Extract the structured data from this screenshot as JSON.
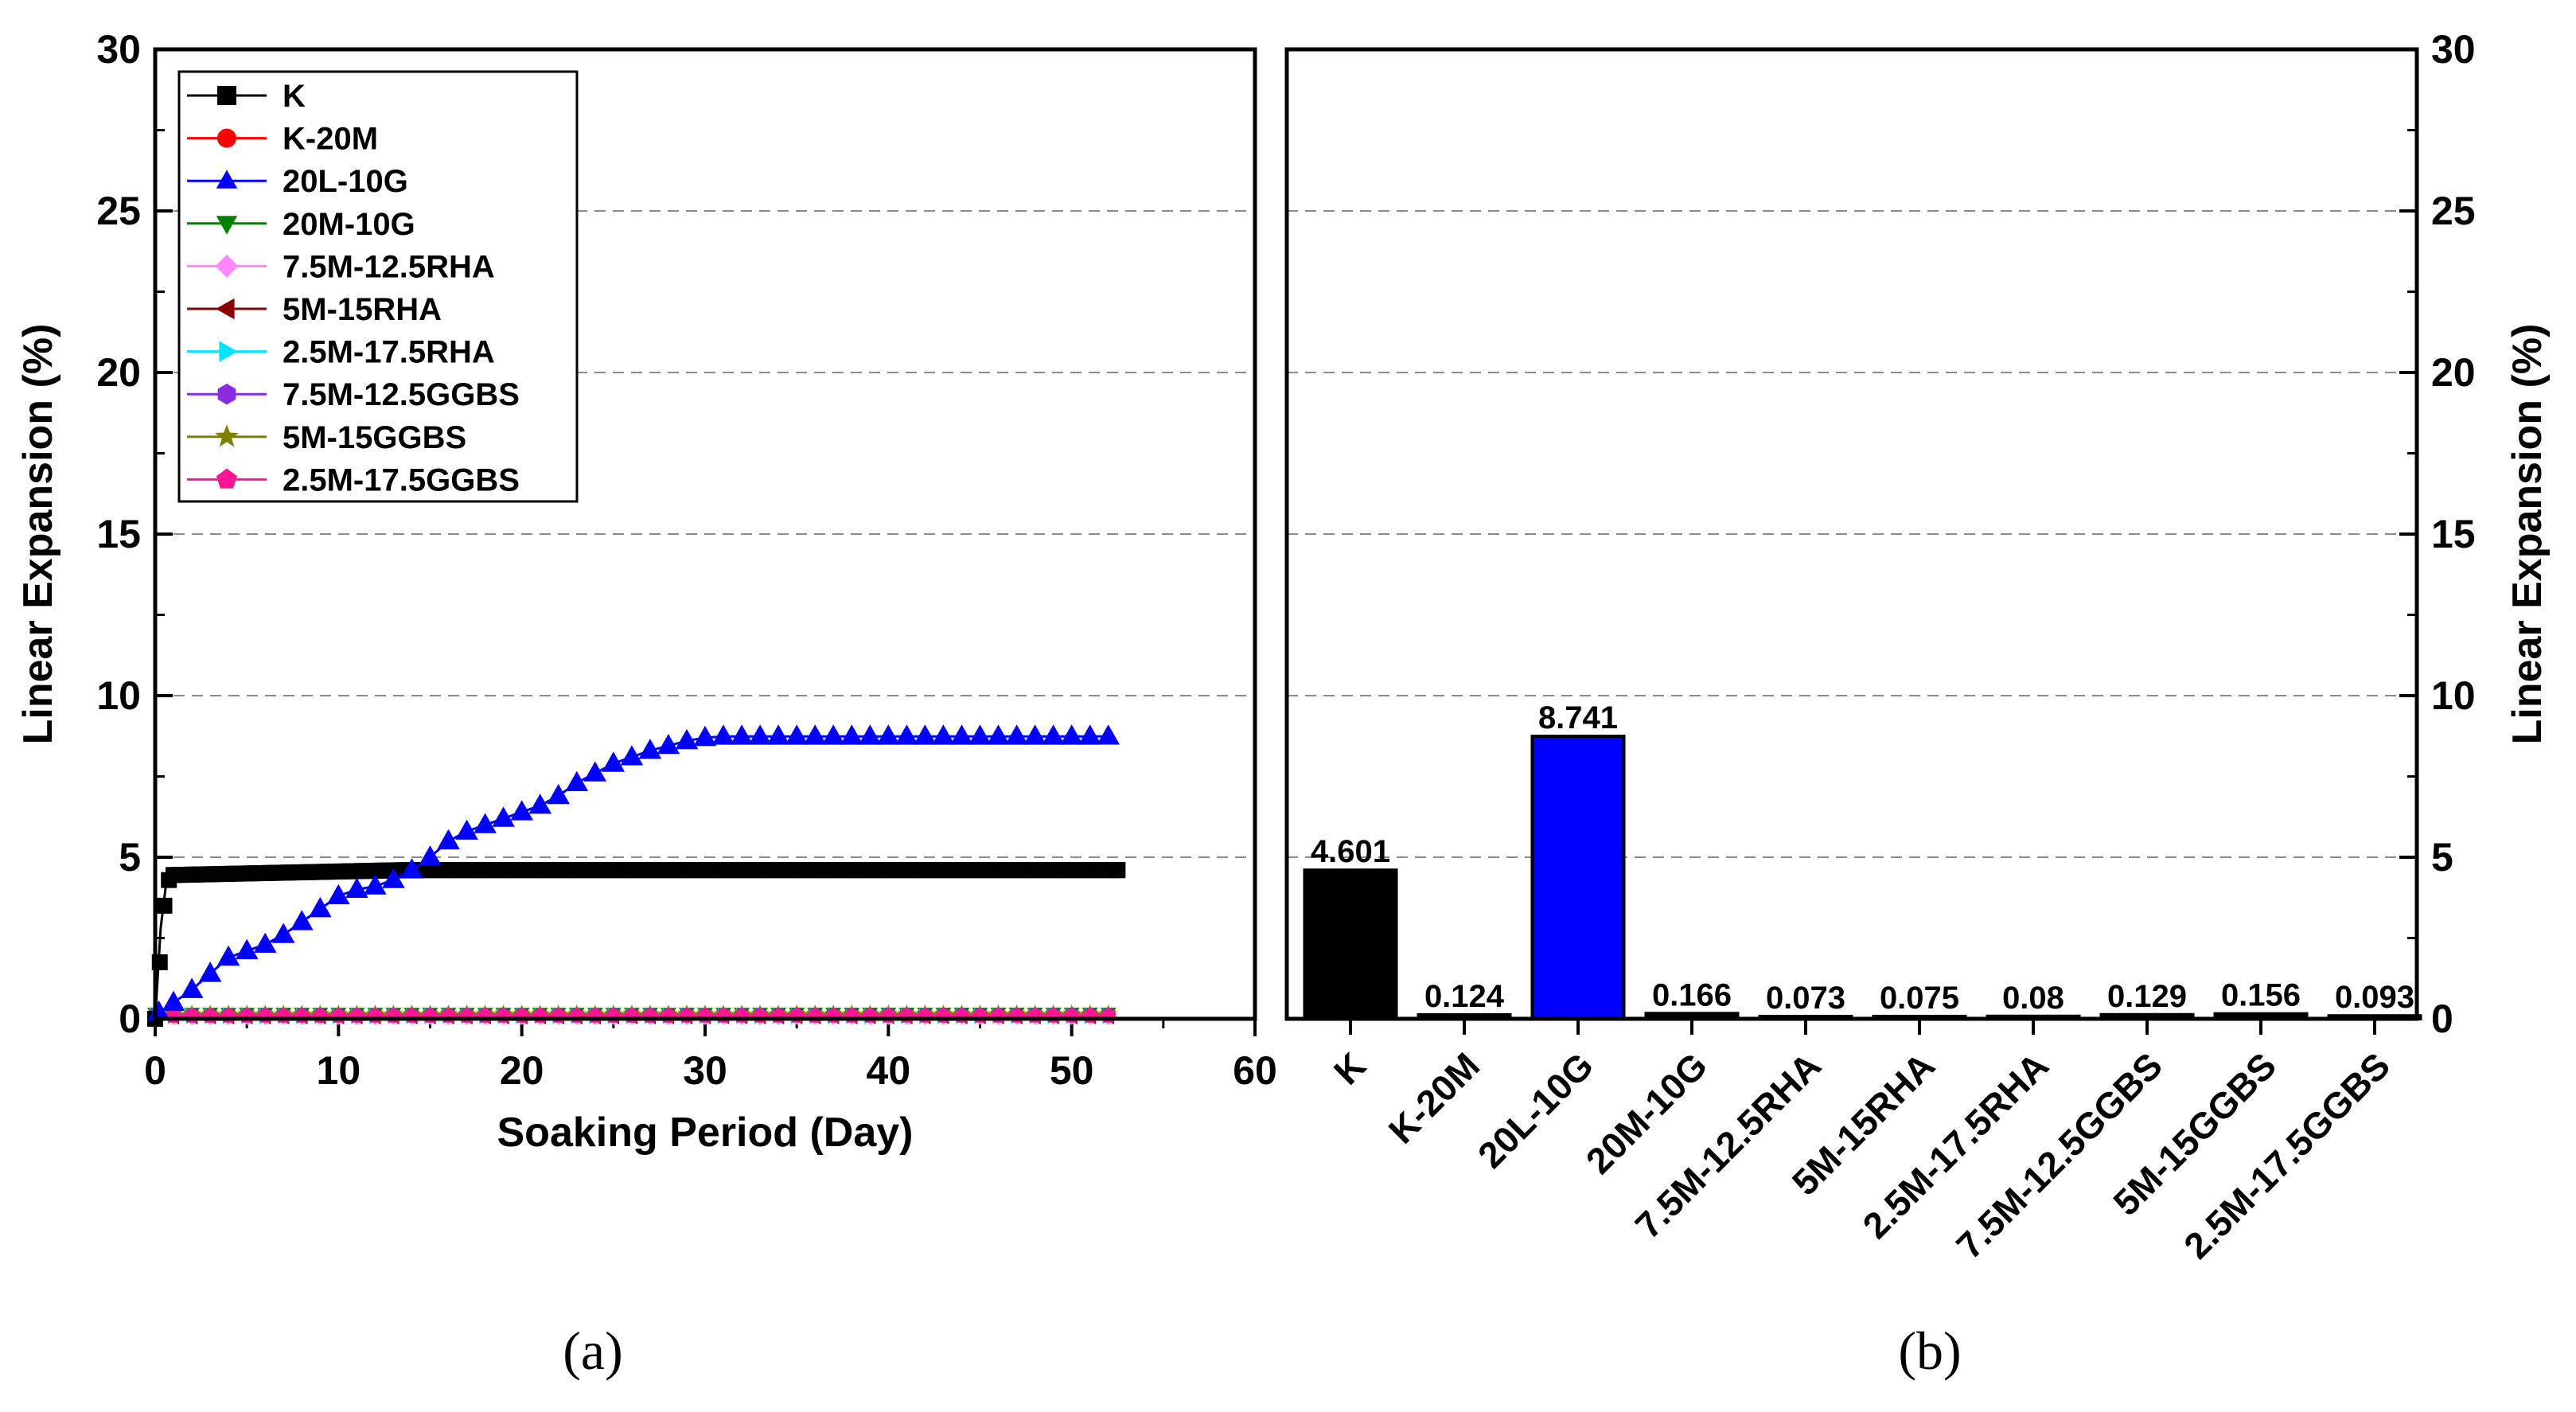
{
  "chart_data": [
    {
      "panel": "a",
      "type": "line",
      "xlabel": "Soaking Period (Day)",
      "ylabel": "Linear Expansion (%)",
      "xlim": [
        0,
        60
      ],
      "ylim": [
        0,
        30
      ],
      "xticks": [
        0,
        10,
        20,
        30,
        40,
        50,
        60
      ],
      "yticks": [
        0,
        5,
        10,
        15,
        20,
        25,
        30
      ],
      "grid": "horizontal dashed",
      "legend_position": "top-left",
      "series": [
        {
          "name": "K",
          "color": "#000000",
          "marker": "square",
          "x": [
            0,
            0.3,
            0.6,
            1,
            2,
            5,
            10,
            15,
            20,
            25,
            30,
            35,
            40,
            45,
            50,
            52.5
          ],
          "y": [
            0,
            2.8,
            4.2,
            4.45,
            4.5,
            4.55,
            4.58,
            4.6,
            4.6,
            4.6,
            4.6,
            4.6,
            4.6,
            4.6,
            4.6,
            4.601
          ]
        },
        {
          "name": "K-20M",
          "color": "#ff0000",
          "marker": "circle",
          "x": [
            0,
            52.5
          ],
          "y": [
            0.12,
            0.124
          ]
        },
        {
          "name": "20L-10G",
          "color": "#0000ff",
          "marker": "triangle-up",
          "x": [
            0.2,
            1,
            2,
            3,
            4,
            5,
            6,
            7,
            8,
            9,
            10,
            11,
            12,
            13,
            14,
            15,
            16,
            17,
            18,
            19,
            20,
            21,
            22,
            23,
            24,
            25,
            26,
            27,
            28,
            29,
            30,
            31,
            32,
            33,
            34,
            35,
            36,
            37,
            38,
            39,
            40,
            41,
            42,
            43,
            44,
            45,
            46,
            47,
            48,
            49,
            50,
            51,
            52
          ],
          "y": [
            0.2,
            0.5,
            0.9,
            1.4,
            1.9,
            2.1,
            2.3,
            2.6,
            3.0,
            3.4,
            3.8,
            4.0,
            4.1,
            4.3,
            4.6,
            5.0,
            5.5,
            5.8,
            6.0,
            6.2,
            6.4,
            6.6,
            6.9,
            7.3,
            7.6,
            7.9,
            8.1,
            8.3,
            8.45,
            8.6,
            8.7,
            8.74,
            8.74,
            8.74,
            8.74,
            8.74,
            8.74,
            8.74,
            8.74,
            8.74,
            8.74,
            8.74,
            8.74,
            8.74,
            8.74,
            8.74,
            8.74,
            8.74,
            8.74,
            8.74,
            8.74,
            8.74,
            8.741
          ]
        },
        {
          "name": "20M-10G",
          "color": "#008000",
          "marker": "triangle-down",
          "x": [
            0,
            52.5
          ],
          "y": [
            0.16,
            0.166
          ]
        },
        {
          "name": "7.5M-12.5RHA",
          "color": "#ff88ff",
          "marker": "diamond",
          "x": [
            0,
            52.5
          ],
          "y": [
            0.07,
            0.073
          ]
        },
        {
          "name": "5M-15RHA",
          "color": "#8b0000",
          "marker": "triangle-left",
          "x": [
            0,
            52.5
          ],
          "y": [
            0.07,
            0.075
          ]
        },
        {
          "name": "2.5M-17.5RHA",
          "color": "#00e5ff",
          "marker": "triangle-right",
          "x": [
            0,
            52.5
          ],
          "y": [
            0.08,
            0.08
          ]
        },
        {
          "name": "7.5M-12.5GGBS",
          "color": "#8a2be2",
          "marker": "hexagon",
          "x": [
            0,
            52.5
          ],
          "y": [
            0.12,
            0.129
          ]
        },
        {
          "name": "5M-15GGBS",
          "color": "#808000",
          "marker": "star",
          "x": [
            0,
            52.5
          ],
          "y": [
            0.15,
            0.156
          ]
        },
        {
          "name": "2.5M-17.5GGBS",
          "color": "#ff1493",
          "marker": "pentagon",
          "x": [
            0,
            52.5
          ],
          "y": [
            0.09,
            0.093
          ]
        }
      ]
    },
    {
      "panel": "b",
      "type": "bar",
      "ylabel": "Linear Expansion (%)",
      "ylim": [
        0,
        30
      ],
      "yticks": [
        0,
        5,
        10,
        15,
        20,
        25,
        30
      ],
      "grid": "horizontal dashed",
      "categories": [
        "K",
        "K-20M",
        "20L-10G",
        "20M-10G",
        "7.5M-12.5RHA",
        "5M-15RHA",
        "2.5M-17.5RHA",
        "7.5M-12.5GGBS",
        "5M-15GGBS",
        "2.5M-17.5GGBS"
      ],
      "values": [
        4.601,
        0.124,
        8.741,
        0.166,
        0.073,
        0.075,
        0.08,
        0.129,
        0.156,
        0.093
      ],
      "value_labels": [
        "4.601",
        "0.124",
        "8.741",
        "0.166",
        "0.073",
        "0.075",
        "0.08",
        "0.129",
        "0.156",
        "0.093"
      ],
      "colors": [
        "#000000",
        "#000000",
        "#0000ff",
        "#000000",
        "#000000",
        "#000000",
        "#000000",
        "#000000",
        "#000000",
        "#000000"
      ]
    }
  ],
  "captions": {
    "a": "(a)",
    "b": "(b)"
  }
}
